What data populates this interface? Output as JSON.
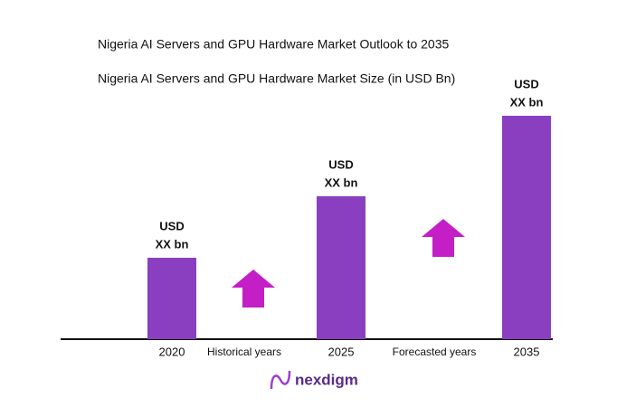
{
  "chart_data": {
    "type": "bar",
    "title": "Nigeria AI Servers and GPU Hardware Market Outlook to 2035",
    "subtitle": "Nigeria AI Servers and GPU Hardware Market Size (in USD Bn)",
    "categories": [
      "2020",
      "2025",
      "2035"
    ],
    "values": [
      90,
      158,
      247
    ],
    "value_labels": [
      [
        "USD",
        "XX bn"
      ],
      [
        "USD",
        "XX bn"
      ],
      [
        "USD",
        "XX bn"
      ]
    ],
    "color": "#8a3fc0",
    "ylim": [
      0,
      250
    ],
    "annotations": [
      "Historical years",
      "Forecasted years"
    ],
    "arrow_color": "#c41fc6",
    "logo": "nexdigm"
  }
}
